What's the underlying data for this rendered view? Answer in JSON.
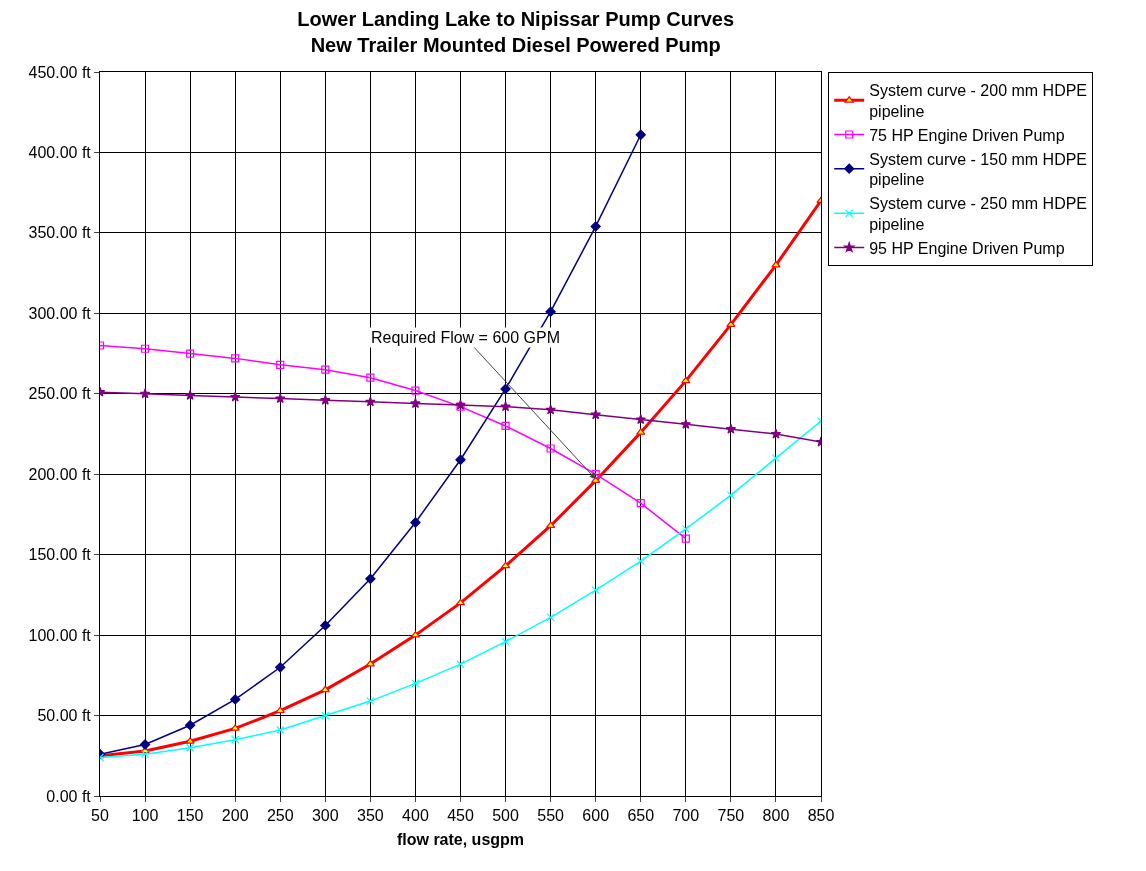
{
  "chart_data": {
    "type": "line",
    "title": "Lower Landing Lake to Nipissar Pump Curves",
    "subtitle": "New Trailer Mounted Diesel Powered Pump",
    "xlabel": "flow rate, usgpm",
    "categories": [
      "50",
      "100",
      "150",
      "200",
      "250",
      "300",
      "350",
      "400",
      "450",
      "500",
      "550",
      "600",
      "650",
      "700",
      "750",
      "800",
      "850"
    ],
    "series": [
      {
        "name": "System curve - 200 mm HDPE pipeline",
        "color": "#ff0000",
        "marker": "triangle",
        "values": [
          25,
          28,
          34,
          42,
          53,
          66,
          82,
          100,
          120,
          143,
          168,
          196,
          226,
          258,
          293,
          330,
          370
        ]
      },
      {
        "name": "75 HP Engine Driven Pump",
        "color": "#ff00ff",
        "marker": "square",
        "values": [
          280,
          278,
          275,
          272,
          268,
          265,
          260,
          252,
          242,
          230,
          216,
          200,
          182,
          160,
          null,
          null,
          null
        ]
      },
      {
        "name": "System curve - 150 mm HDPE pipeline",
        "color": "#000080",
        "marker": "diamond",
        "values": [
          26,
          32,
          44,
          60,
          80,
          106,
          135,
          170,
          209,
          253,
          301,
          354,
          411,
          null,
          null,
          null,
          null
        ]
      },
      {
        "name": "System curve - 250 mm HDPE pipeline",
        "color": "#00ffff",
        "marker": "cross",
        "values": [
          24,
          26,
          30,
          35,
          41,
          50,
          59,
          70,
          82,
          96,
          111,
          128,
          146,
          166,
          187,
          210,
          233
        ]
      },
      {
        "name": "95 HP Engine Driven Pump",
        "color": "#800080",
        "marker": "star",
        "values": [
          251,
          250,
          249,
          248,
          247,
          246,
          245,
          244,
          243,
          242,
          240,
          237,
          234,
          231,
          228,
          225,
          220
        ]
      }
    ],
    "ylim": [
      0,
      450
    ],
    "yticks": [
      {
        "value": 0,
        "label": "0.00 ft"
      },
      {
        "value": 50,
        "label": "50.00 ft"
      },
      {
        "value": 100,
        "label": "100.00 ft"
      },
      {
        "value": 150,
        "label": "150.00 ft"
      },
      {
        "value": 200,
        "label": "200.00 ft"
      },
      {
        "value": 250,
        "label": "250.00 ft"
      },
      {
        "value": 300,
        "label": "300.00 ft"
      },
      {
        "value": 350,
        "label": "350.00 ft"
      },
      {
        "value": 400,
        "label": "400.00 ft"
      },
      {
        "value": 450,
        "label": "450.00 ft"
      }
    ],
    "annotations": [
      {
        "text": "Required Flow = 600 GPM",
        "x": "600",
        "y": 197
      }
    ],
    "grid": true,
    "legend": "top right"
  }
}
